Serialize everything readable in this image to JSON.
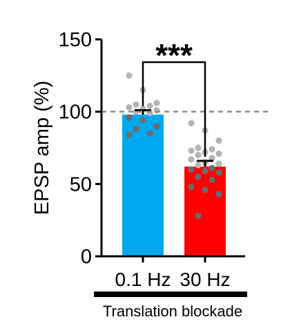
{
  "chart_data": {
    "type": "bar",
    "ylabel": "EPSP amp (%)",
    "ylim": [
      0,
      150
    ],
    "yticks": [
      0,
      50,
      100,
      150
    ],
    "categories": [
      "0.1 Hz",
      "30 Hz"
    ],
    "values": [
      98,
      62
    ],
    "sem": [
      3,
      4
    ],
    "colors": [
      "#00a8f0",
      "#ff0000"
    ],
    "points": [
      [
        125,
        115,
        106,
        105,
        104,
        103,
        102,
        101,
        100,
        99,
        96,
        94,
        90,
        88,
        85,
        84
      ],
      [
        92,
        87,
        80,
        75,
        74,
        73,
        72,
        71,
        70,
        68,
        67,
        65,
        64,
        63,
        61,
        60,
        59,
        58,
        55,
        53,
        48,
        46,
        43,
        28
      ]
    ],
    "point_colors": {
      "inside": "#6b6b6b",
      "outside": "#b5b5b5"
    },
    "reference_line": {
      "y": 100,
      "style": "dashed"
    },
    "significance": {
      "label": "***",
      "between": [
        0,
        1
      ]
    },
    "group_label": "Translation blockade",
    "grid": false,
    "legend": "none"
  }
}
